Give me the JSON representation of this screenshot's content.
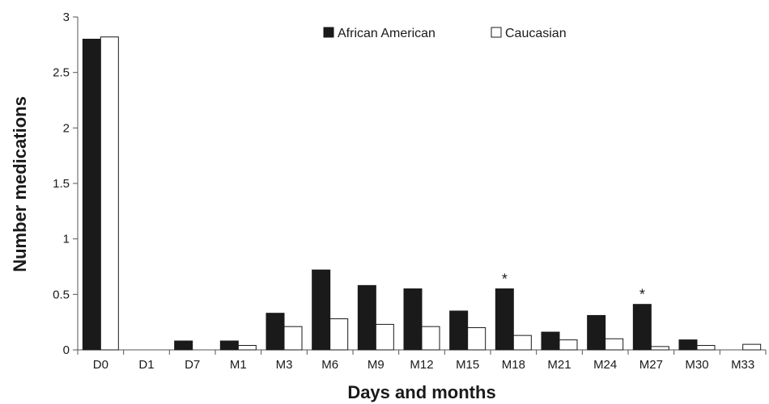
{
  "chart_data": {
    "type": "bar",
    "title": "",
    "xlabel": "Days and months",
    "ylabel": "Number medications",
    "ylim": [
      0,
      3
    ],
    "yticks": [
      "0",
      "0.5",
      "1",
      "1.5",
      "2",
      "2.5",
      "3"
    ],
    "grid": false,
    "legend_position": "top-right",
    "categories": [
      "D0",
      "D1",
      "D7",
      "M1",
      "M3",
      "M6",
      "M9",
      "M12",
      "M15",
      "M18",
      "M21",
      "M24",
      "M27",
      "M30",
      "M33"
    ],
    "series": [
      {
        "name": "African American",
        "color": "#1a1a1a",
        "fill": "solid",
        "values": [
          2.8,
          0,
          0.08,
          0.08,
          0.33,
          0.72,
          0.58,
          0.55,
          0.35,
          0.55,
          0.16,
          0.31,
          0.41,
          0.09,
          0
        ]
      },
      {
        "name": "Caucasian",
        "color": "#ffffff",
        "fill": "outline",
        "values": [
          2.82,
          0,
          0,
          0.04,
          0.21,
          0.28,
          0.23,
          0.21,
          0.2,
          0.13,
          0.09,
          0.1,
          0.03,
          0.04,
          0.05
        ]
      }
    ],
    "annotations": [
      {
        "category": "M18",
        "text": "*"
      },
      {
        "category": "M27",
        "text": "*"
      }
    ]
  }
}
